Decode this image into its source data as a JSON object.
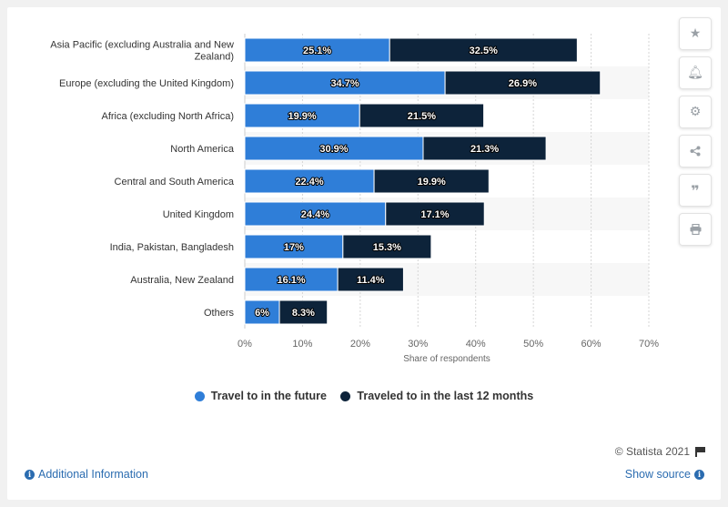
{
  "chart_data": {
    "type": "bar",
    "orientation": "horizontal",
    "stacked": true,
    "categories": [
      [
        "Asia Pacific (excluding Australia and New",
        "Zealand)"
      ],
      [
        "Europe (excluding the United Kingdom)"
      ],
      [
        "Africa (excluding North Africa)"
      ],
      [
        "North America"
      ],
      [
        "Central and South America"
      ],
      [
        "United Kingdom"
      ],
      [
        "India, Pakistan, Bangladesh"
      ],
      [
        "Australia, New Zealand"
      ],
      [
        "Others"
      ]
    ],
    "series": [
      {
        "name": "Travel to in the future",
        "color": "#2f7ed8",
        "values": [
          25.1,
          34.7,
          19.9,
          30.9,
          22.4,
          24.4,
          17,
          16.1,
          6
        ],
        "labels": [
          "25.1%",
          "34.7%",
          "19.9%",
          "30.9%",
          "22.4%",
          "24.4%",
          "17%",
          "16.1%",
          "6%"
        ]
      },
      {
        "name": "Traveled to in the last 12 months",
        "color": "#0d233a",
        "values": [
          32.5,
          26.9,
          21.5,
          21.3,
          19.9,
          17.1,
          15.3,
          11.4,
          8.3
        ],
        "labels": [
          "32.5%",
          "26.9%",
          "21.5%",
          "21.3%",
          "19.9%",
          "17.1%",
          "15.3%",
          "11.4%",
          "8.3%"
        ]
      }
    ],
    "xlabel": "Share of respondents",
    "xlim": [
      0,
      70
    ],
    "ticks": [
      0,
      10,
      20,
      30,
      40,
      50,
      60,
      70
    ],
    "tick_labels": [
      "0%",
      "10%",
      "20%",
      "30%",
      "40%",
      "50%",
      "60%",
      "70%"
    ],
    "grid": true,
    "legend": "bottom-center"
  },
  "toolbar": {
    "icons": [
      "star-icon",
      "bell-icon",
      "gear-icon",
      "share-icon",
      "quote-icon",
      "print-icon"
    ]
  },
  "footer": {
    "credits": "© Statista 2021",
    "additional_info": "Additional Information",
    "show_source": "Show source"
  }
}
